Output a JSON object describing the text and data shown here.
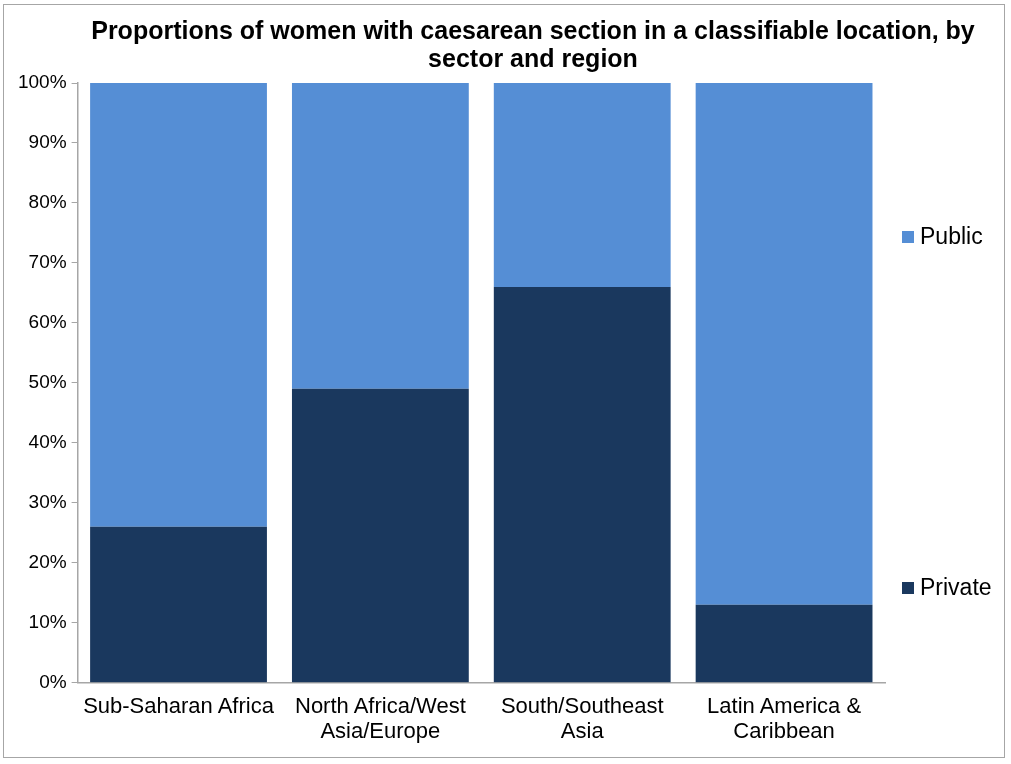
{
  "chart_data": {
    "type": "bar",
    "title": "Proportions of women with caesarean section in a classifiable location, by sector and region",
    "categories": [
      "Sub-Saharan Africa",
      "North Africa/West Asia/Europe",
      "South/Southeast Asia",
      "Latin America & Caribbean"
    ],
    "series": [
      {
        "name": "Private",
        "color": "#1a385e",
        "values": [
          26,
          49,
          66,
          13
        ]
      },
      {
        "name": "Public",
        "color": "#558ed5",
        "values": [
          74,
          51,
          34,
          87
        ]
      }
    ],
    "stacked": true,
    "ylim": [
      0,
      100
    ],
    "yticks": [
      {
        "value": 0,
        "label": "0%"
      },
      {
        "value": 10,
        "label": "10%"
      },
      {
        "value": 20,
        "label": "20%"
      },
      {
        "value": 30,
        "label": "30%"
      },
      {
        "value": 40,
        "label": "40%"
      },
      {
        "value": 50,
        "label": "50%"
      },
      {
        "value": 60,
        "label": "60%"
      },
      {
        "value": 70,
        "label": "70%"
      },
      {
        "value": 80,
        "label": "80%"
      },
      {
        "value": 90,
        "label": "90%"
      },
      {
        "value": 100,
        "label": "100%"
      }
    ],
    "grid": false,
    "legend": "right"
  }
}
